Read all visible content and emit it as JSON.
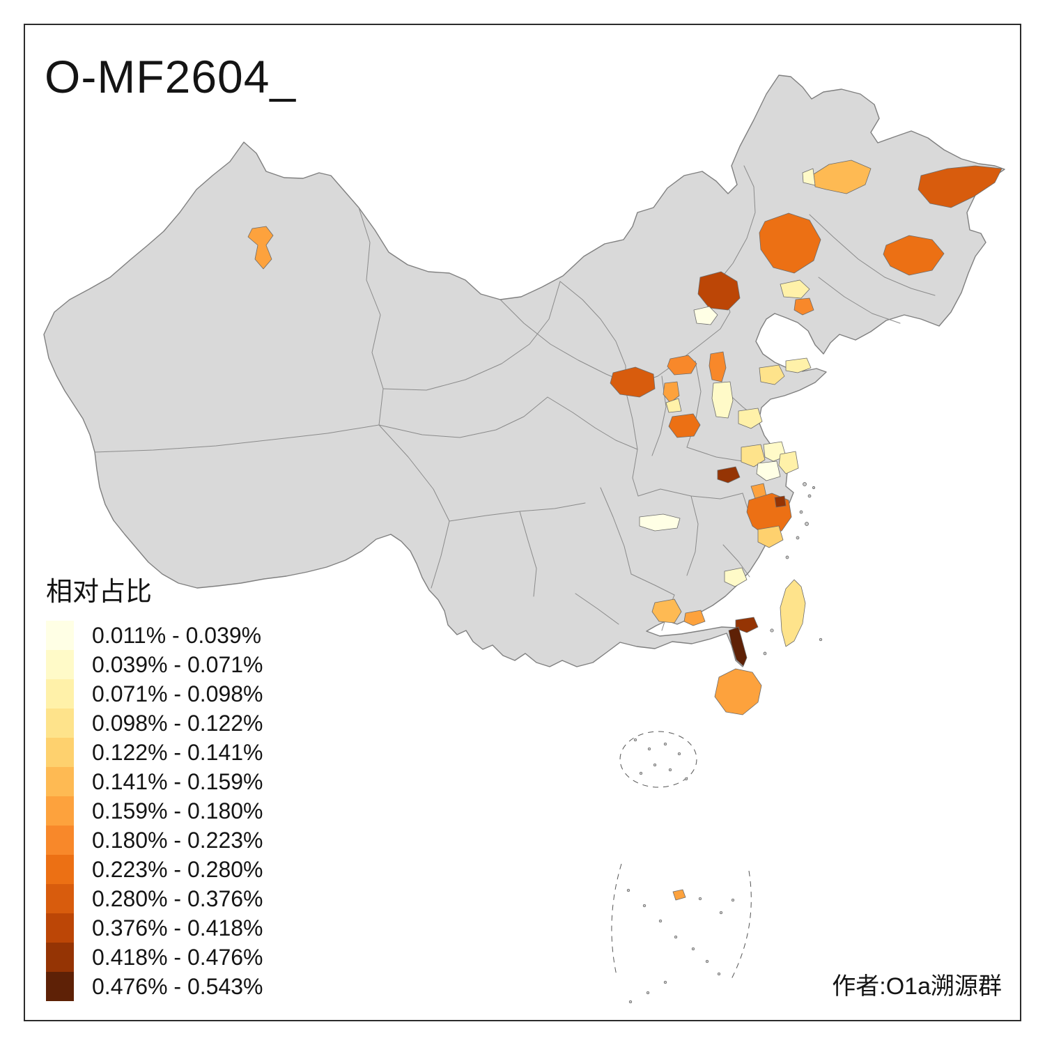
{
  "title": "O-MF2604_",
  "attribution": "作者:O1a溯源群",
  "legend": {
    "title": "相对占比",
    "items": [
      {
        "label": "0.011% - 0.039%",
        "color": "#FFFFE5"
      },
      {
        "label": "0.039% - 0.071%",
        "color": "#FFFAC8"
      },
      {
        "label": "0.071% - 0.098%",
        "color": "#FFF1A9"
      },
      {
        "label": "0.098% - 0.122%",
        "color": "#FEE38B"
      },
      {
        "label": "0.122% - 0.141%",
        "color": "#FED16E"
      },
      {
        "label": "0.141% - 0.159%",
        "color": "#FEBA53"
      },
      {
        "label": "0.159% - 0.180%",
        "color": "#FDA23D"
      },
      {
        "label": "0.180% - 0.223%",
        "color": "#F8882A"
      },
      {
        "label": "0.223% - 0.280%",
        "color": "#EC7014"
      },
      {
        "label": "0.280% - 0.376%",
        "color": "#D85C0D"
      },
      {
        "label": "0.376% - 0.418%",
        "color": "#BC4606"
      },
      {
        "label": "0.418% - 0.476%",
        "color": "#953404"
      },
      {
        "label": "0.476% - 0.543%",
        "color": "#5E2106"
      }
    ]
  },
  "map": {
    "base_fill": "#D9D9D9",
    "border_color": "#8A8A8A",
    "background": "#FFFFFF"
  }
}
